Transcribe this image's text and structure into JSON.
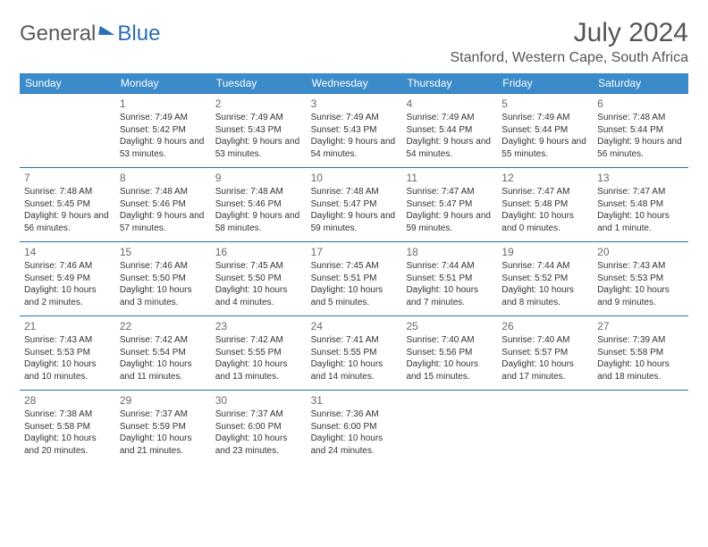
{
  "brand": {
    "part1": "General",
    "part2": "Blue"
  },
  "title": "July 2024",
  "location": "Stanford, Western Cape, South Africa",
  "dow": [
    "Sunday",
    "Monday",
    "Tuesday",
    "Wednesday",
    "Thursday",
    "Friday",
    "Saturday"
  ],
  "colors": {
    "header_bg": "#3b8bca",
    "border": "#2a6fb5",
    "text": "#333333",
    "title": "#555555"
  },
  "weeks": [
    [
      {
        "n": "",
        "sr": "",
        "ss": "",
        "dl": ""
      },
      {
        "n": "1",
        "sr": "Sunrise: 7:49 AM",
        "ss": "Sunset: 5:42 PM",
        "dl": "Daylight: 9 hours and 53 minutes."
      },
      {
        "n": "2",
        "sr": "Sunrise: 7:49 AM",
        "ss": "Sunset: 5:43 PM",
        "dl": "Daylight: 9 hours and 53 minutes."
      },
      {
        "n": "3",
        "sr": "Sunrise: 7:49 AM",
        "ss": "Sunset: 5:43 PM",
        "dl": "Daylight: 9 hours and 54 minutes."
      },
      {
        "n": "4",
        "sr": "Sunrise: 7:49 AM",
        "ss": "Sunset: 5:44 PM",
        "dl": "Daylight: 9 hours and 54 minutes."
      },
      {
        "n": "5",
        "sr": "Sunrise: 7:49 AM",
        "ss": "Sunset: 5:44 PM",
        "dl": "Daylight: 9 hours and 55 minutes."
      },
      {
        "n": "6",
        "sr": "Sunrise: 7:48 AM",
        "ss": "Sunset: 5:44 PM",
        "dl": "Daylight: 9 hours and 56 minutes."
      }
    ],
    [
      {
        "n": "7",
        "sr": "Sunrise: 7:48 AM",
        "ss": "Sunset: 5:45 PM",
        "dl": "Daylight: 9 hours and 56 minutes."
      },
      {
        "n": "8",
        "sr": "Sunrise: 7:48 AM",
        "ss": "Sunset: 5:46 PM",
        "dl": "Daylight: 9 hours and 57 minutes."
      },
      {
        "n": "9",
        "sr": "Sunrise: 7:48 AM",
        "ss": "Sunset: 5:46 PM",
        "dl": "Daylight: 9 hours and 58 minutes."
      },
      {
        "n": "10",
        "sr": "Sunrise: 7:48 AM",
        "ss": "Sunset: 5:47 PM",
        "dl": "Daylight: 9 hours and 59 minutes."
      },
      {
        "n": "11",
        "sr": "Sunrise: 7:47 AM",
        "ss": "Sunset: 5:47 PM",
        "dl": "Daylight: 9 hours and 59 minutes."
      },
      {
        "n": "12",
        "sr": "Sunrise: 7:47 AM",
        "ss": "Sunset: 5:48 PM",
        "dl": "Daylight: 10 hours and 0 minutes."
      },
      {
        "n": "13",
        "sr": "Sunrise: 7:47 AM",
        "ss": "Sunset: 5:48 PM",
        "dl": "Daylight: 10 hours and 1 minute."
      }
    ],
    [
      {
        "n": "14",
        "sr": "Sunrise: 7:46 AM",
        "ss": "Sunset: 5:49 PM",
        "dl": "Daylight: 10 hours and 2 minutes."
      },
      {
        "n": "15",
        "sr": "Sunrise: 7:46 AM",
        "ss": "Sunset: 5:50 PM",
        "dl": "Daylight: 10 hours and 3 minutes."
      },
      {
        "n": "16",
        "sr": "Sunrise: 7:45 AM",
        "ss": "Sunset: 5:50 PM",
        "dl": "Daylight: 10 hours and 4 minutes."
      },
      {
        "n": "17",
        "sr": "Sunrise: 7:45 AM",
        "ss": "Sunset: 5:51 PM",
        "dl": "Daylight: 10 hours and 5 minutes."
      },
      {
        "n": "18",
        "sr": "Sunrise: 7:44 AM",
        "ss": "Sunset: 5:51 PM",
        "dl": "Daylight: 10 hours and 7 minutes."
      },
      {
        "n": "19",
        "sr": "Sunrise: 7:44 AM",
        "ss": "Sunset: 5:52 PM",
        "dl": "Daylight: 10 hours and 8 minutes."
      },
      {
        "n": "20",
        "sr": "Sunrise: 7:43 AM",
        "ss": "Sunset: 5:53 PM",
        "dl": "Daylight: 10 hours and 9 minutes."
      }
    ],
    [
      {
        "n": "21",
        "sr": "Sunrise: 7:43 AM",
        "ss": "Sunset: 5:53 PM",
        "dl": "Daylight: 10 hours and 10 minutes."
      },
      {
        "n": "22",
        "sr": "Sunrise: 7:42 AM",
        "ss": "Sunset: 5:54 PM",
        "dl": "Daylight: 10 hours and 11 minutes."
      },
      {
        "n": "23",
        "sr": "Sunrise: 7:42 AM",
        "ss": "Sunset: 5:55 PM",
        "dl": "Daylight: 10 hours and 13 minutes."
      },
      {
        "n": "24",
        "sr": "Sunrise: 7:41 AM",
        "ss": "Sunset: 5:55 PM",
        "dl": "Daylight: 10 hours and 14 minutes."
      },
      {
        "n": "25",
        "sr": "Sunrise: 7:40 AM",
        "ss": "Sunset: 5:56 PM",
        "dl": "Daylight: 10 hours and 15 minutes."
      },
      {
        "n": "26",
        "sr": "Sunrise: 7:40 AM",
        "ss": "Sunset: 5:57 PM",
        "dl": "Daylight: 10 hours and 17 minutes."
      },
      {
        "n": "27",
        "sr": "Sunrise: 7:39 AM",
        "ss": "Sunset: 5:58 PM",
        "dl": "Daylight: 10 hours and 18 minutes."
      }
    ],
    [
      {
        "n": "28",
        "sr": "Sunrise: 7:38 AM",
        "ss": "Sunset: 5:58 PM",
        "dl": "Daylight: 10 hours and 20 minutes."
      },
      {
        "n": "29",
        "sr": "Sunrise: 7:37 AM",
        "ss": "Sunset: 5:59 PM",
        "dl": "Daylight: 10 hours and 21 minutes."
      },
      {
        "n": "30",
        "sr": "Sunrise: 7:37 AM",
        "ss": "Sunset: 6:00 PM",
        "dl": "Daylight: 10 hours and 23 minutes."
      },
      {
        "n": "31",
        "sr": "Sunrise: 7:36 AM",
        "ss": "Sunset: 6:00 PM",
        "dl": "Daylight: 10 hours and 24 minutes."
      },
      {
        "n": "",
        "sr": "",
        "ss": "",
        "dl": ""
      },
      {
        "n": "",
        "sr": "",
        "ss": "",
        "dl": ""
      },
      {
        "n": "",
        "sr": "",
        "ss": "",
        "dl": ""
      }
    ]
  ]
}
